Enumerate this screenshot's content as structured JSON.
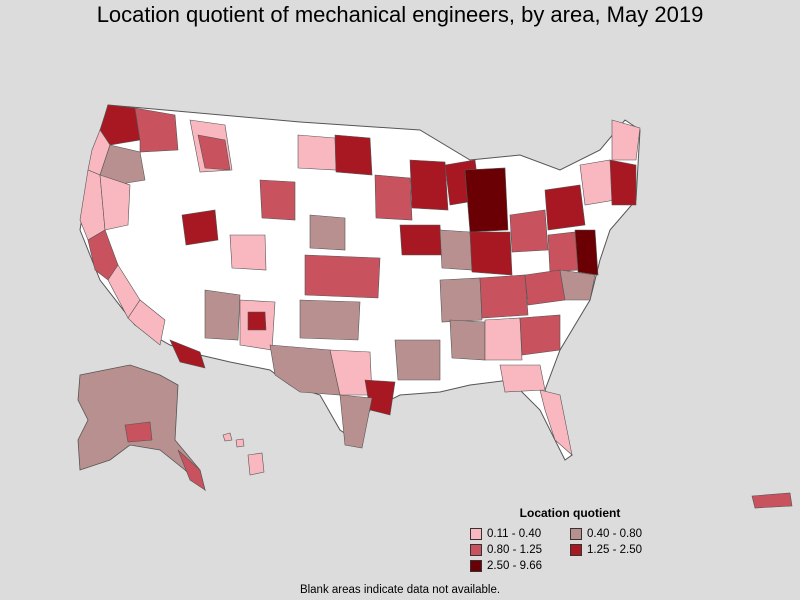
{
  "title": "Location quotient of mechanical engineers, by area, May 2019",
  "legend": {
    "title": "Location quotient",
    "items": [
      {
        "label": "0.11 - 0.40",
        "color": "#f9b8bf"
      },
      {
        "label": "0.40 - 0.80",
        "color": "#b89090"
      },
      {
        "label": "0.80 - 1.25",
        "color": "#c8525e"
      },
      {
        "label": "1.25 - 2.50",
        "color": "#a81822"
      },
      {
        "label": "2.50 - 9.66",
        "color": "#6a0004"
      }
    ]
  },
  "footnote": "Blank areas indicate data not available.",
  "colors": {
    "background": "#dcdcdc",
    "no_data": "#ffffff",
    "border": "#555555"
  }
}
